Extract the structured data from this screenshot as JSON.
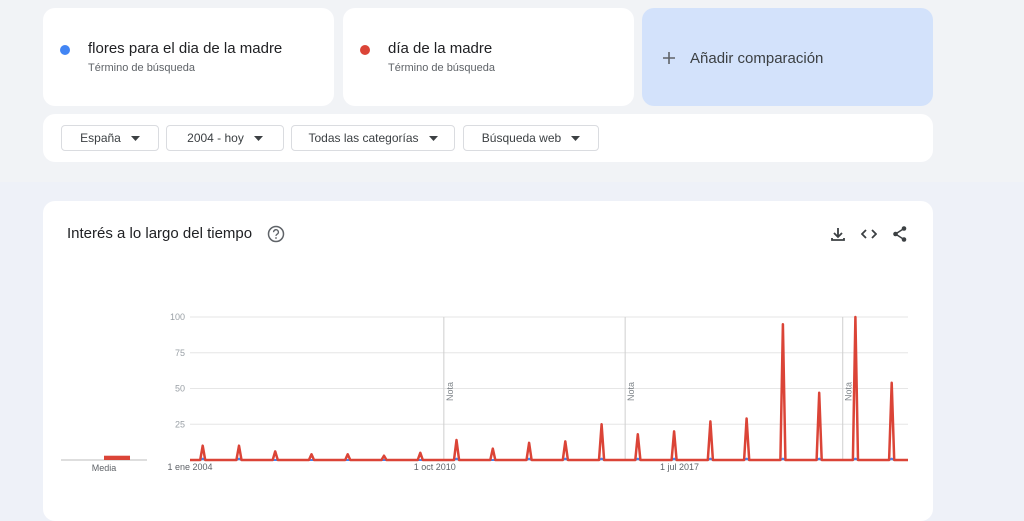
{
  "search_terms": [
    {
      "sublabel": "Término de búsqueda"
    },
    {
      "sublabel": "Término de búsqueda"
    }
  ],
  "add_comparison": "Añadir comparación",
  "filters": [
    "España",
    "2004 - hoy",
    "Todas las categorías",
    "Búsqueda web"
  ],
  "card_title": "Interés a lo largo del tiempo",
  "chart_data": {
    "type": "line",
    "x": [
      2004.0,
      2004.28,
      2004.35,
      2004.42,
      2005.28,
      2005.35,
      2005.42,
      2006.28,
      2006.35,
      2006.42,
      2007.28,
      2007.35,
      2007.42,
      2008.28,
      2008.35,
      2008.42,
      2009.28,
      2009.35,
      2009.42,
      2010.28,
      2010.35,
      2010.42,
      2011.28,
      2011.35,
      2011.42,
      2012.28,
      2012.35,
      2012.42,
      2013.28,
      2013.35,
      2013.42,
      2014.28,
      2014.35,
      2014.42,
      2015.28,
      2015.35,
      2015.42,
      2016.28,
      2016.35,
      2016.42,
      2017.28,
      2017.35,
      2017.42,
      2018.28,
      2018.35,
      2018.42,
      2019.28,
      2019.35,
      2019.42,
      2020.28,
      2020.35,
      2020.42,
      2021.28,
      2021.35,
      2021.42,
      2022.28,
      2022.35,
      2022.42,
      2023.28,
      2023.35,
      2023.42,
      2023.8
    ],
    "series": [
      {
        "name": "flores para el dia de la madre",
        "color": "#4285f4",
        "average": 0,
        "values": [
          0,
          0,
          1,
          0,
          0,
          1,
          0,
          0,
          0,
          0,
          0,
          0,
          0,
          0,
          0,
          0,
          0,
          0,
          0,
          0,
          0,
          0,
          0,
          1,
          0,
          0,
          0,
          0,
          0,
          1,
          0,
          0,
          1,
          0,
          0,
          1,
          0,
          0,
          1,
          0,
          0,
          1,
          0,
          0,
          1,
          0,
          0,
          1,
          0,
          0,
          1,
          0,
          0,
          1,
          0,
          0,
          1,
          0,
          0,
          1,
          0,
          0
        ]
      },
      {
        "name": "día de la madre",
        "color": "#db4437",
        "average": 3,
        "values": [
          0,
          0,
          10,
          0,
          0,
          10,
          0,
          0,
          6,
          0,
          0,
          4,
          0,
          0,
          4,
          0,
          0,
          3,
          0,
          0,
          5,
          0,
          0,
          14,
          0,
          0,
          8,
          0,
          0,
          12,
          0,
          0,
          13,
          0,
          0,
          25,
          0,
          0,
          18,
          0,
          0,
          20,
          0,
          0,
          27,
          0,
          0,
          29,
          0,
          0,
          95,
          0,
          0,
          47,
          0,
          0,
          100,
          0,
          0,
          54,
          0,
          0
        ]
      }
    ],
    "xlim": [
      2004.0,
      2023.8
    ],
    "xticks": [
      {
        "value": 2004.0,
        "label": "1 ene 2004"
      },
      {
        "value": 2010.75,
        "label": "1 oct 2010"
      },
      {
        "value": 2017.5,
        "label": "1 jul 2017"
      }
    ],
    "ylim": [
      0,
      100
    ],
    "yticks": [
      25,
      50,
      75,
      100
    ],
    "grid": true,
    "average_label": "Media",
    "annotations": [
      {
        "x": 2011.0,
        "label": "Nota"
      },
      {
        "x": 2016.0,
        "label": "Nota"
      },
      {
        "x": 2022.0,
        "label": "Nota"
      }
    ]
  }
}
